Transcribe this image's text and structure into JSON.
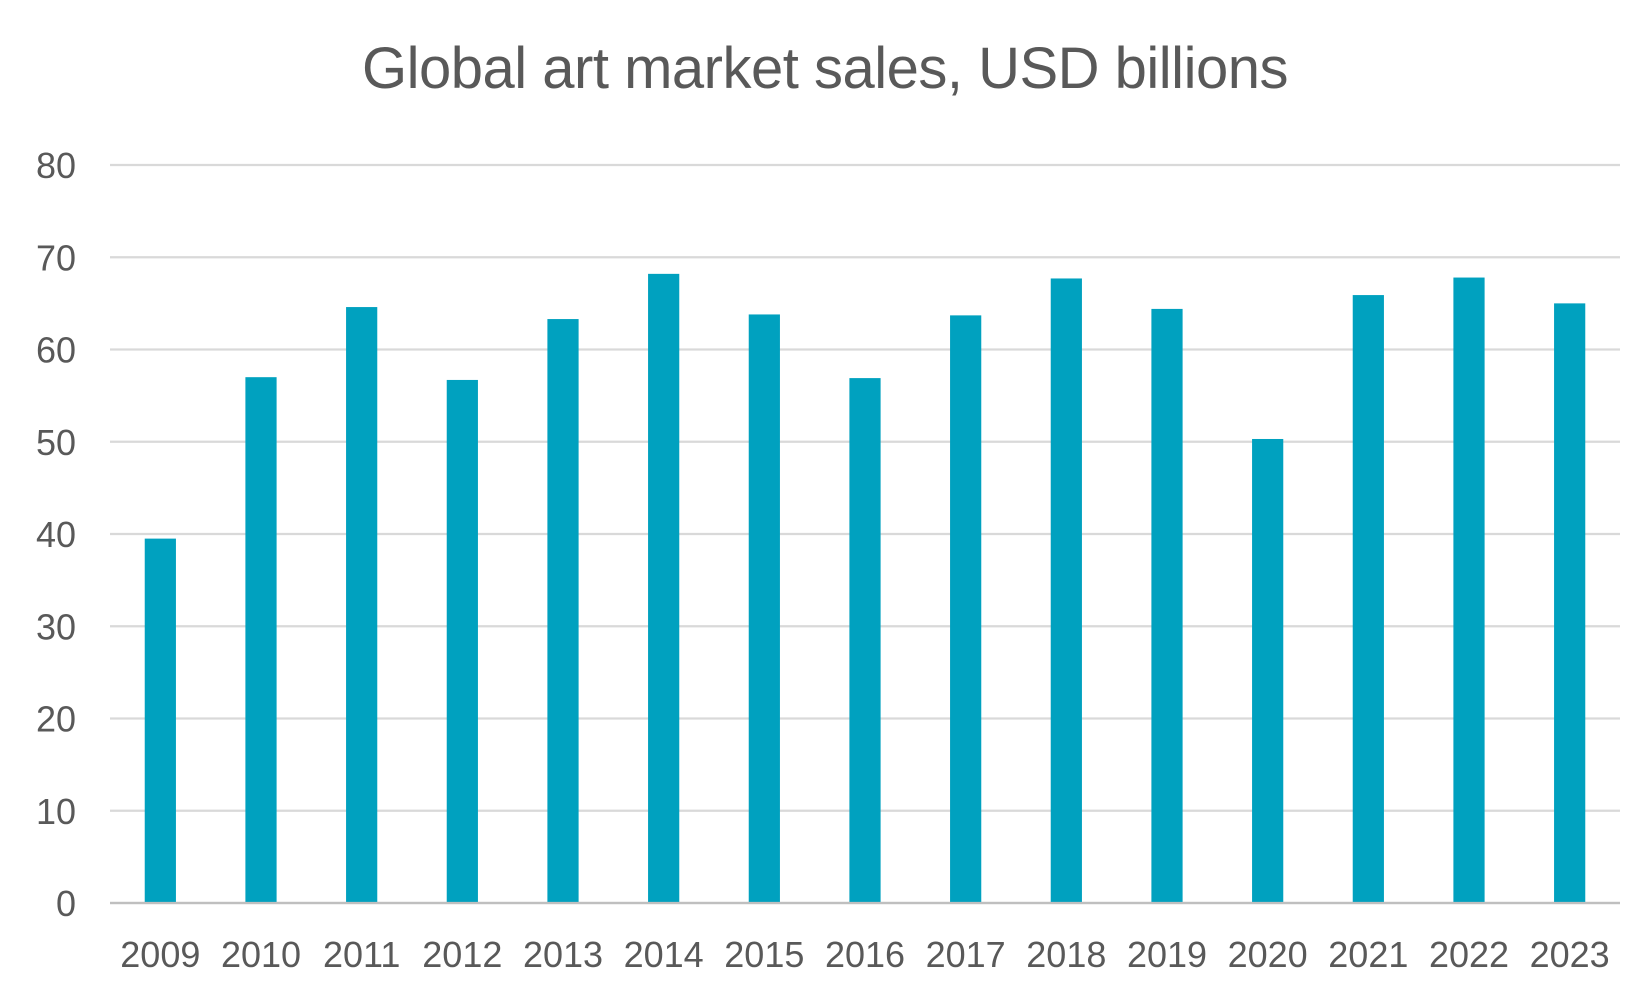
{
  "chart_data": {
    "type": "bar",
    "title": "Global art market sales, USD billions",
    "xlabel": "",
    "ylabel": "",
    "categories": [
      "2009",
      "2010",
      "2011",
      "2012",
      "2013",
      "2014",
      "2015",
      "2016",
      "2017",
      "2018",
      "2019",
      "2020",
      "2021",
      "2022",
      "2023"
    ],
    "values": [
      39.5,
      57.0,
      64.6,
      56.7,
      63.3,
      68.2,
      63.8,
      56.9,
      63.7,
      67.7,
      64.4,
      50.3,
      65.9,
      67.8,
      65.0
    ],
    "ylim": [
      0,
      80
    ],
    "yticks": [
      "0",
      "10",
      "20",
      "30",
      "40",
      "50",
      "60",
      "70",
      "80"
    ],
    "grid": true,
    "legend": "none",
    "bar_color": "#00a1bf",
    "grid_color": "#d9d9d9"
  }
}
